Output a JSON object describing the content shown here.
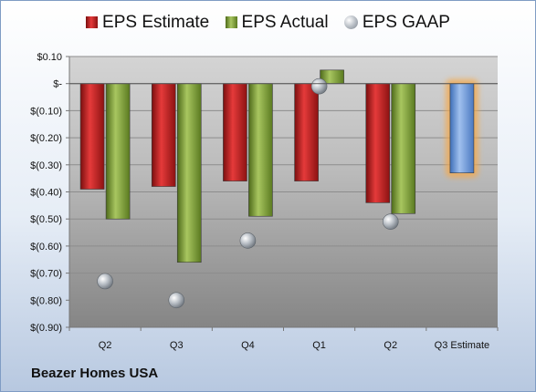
{
  "legend": {
    "estimate": "EPS Estimate",
    "actual": "EPS Actual",
    "gaap": "EPS GAAP"
  },
  "company": "Beazer Homes USA",
  "colors": {
    "estimate": "#c8282a",
    "actual": "#7a9b35",
    "gaap": "#a9b0b8",
    "forecast": "#6f9ad8",
    "forecast_glow": "#f6a94a"
  },
  "chart_data": {
    "type": "bar",
    "categories": [
      "Q2",
      "Q3",
      "Q4",
      "Q1",
      "Q2",
      "Q3 Estimate"
    ],
    "series": [
      {
        "name": "EPS Estimate",
        "values": [
          -0.39,
          -0.38,
          -0.36,
          -0.36,
          -0.44,
          -0.33
        ]
      },
      {
        "name": "EPS Actual",
        "values": [
          -0.5,
          -0.66,
          -0.49,
          0.05,
          -0.48,
          null
        ]
      },
      {
        "name": "EPS GAAP",
        "values": [
          -0.73,
          -0.8,
          -0.58,
          -0.01,
          -0.51,
          null
        ]
      }
    ],
    "ylim": [
      -0.9,
      0.1
    ],
    "y_ticks": [
      {
        "value": 0.1,
        "label": "$0.10"
      },
      {
        "value": 0.0,
        "label": "$-"
      },
      {
        "value": -0.1,
        "label": "$(0.10)"
      },
      {
        "value": -0.2,
        "label": "$(0.20)"
      },
      {
        "value": -0.3,
        "label": "$(0.30)"
      },
      {
        "value": -0.4,
        "label": "$(0.40)"
      },
      {
        "value": -0.5,
        "label": "$(0.50)"
      },
      {
        "value": -0.6,
        "label": "$(0.60)"
      },
      {
        "value": -0.7,
        "label": "$(0.70)"
      },
      {
        "value": -0.8,
        "label": "$(0.80)"
      },
      {
        "value": -0.9,
        "label": "$(0.90)"
      }
    ],
    "grid": true,
    "legend_position": "top",
    "highlighted_category": "Q3 Estimate"
  }
}
